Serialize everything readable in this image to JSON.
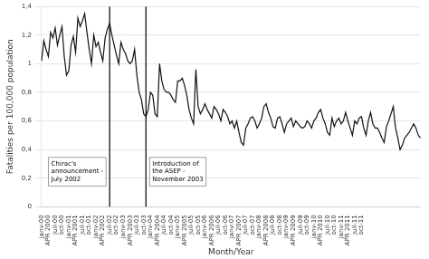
{
  "chart_data": {
    "type": "line",
    "xlabel": "Month/Year",
    "ylabel": "Fatalities per 100,000 population",
    "color": "#111111",
    "grid": "y",
    "ylim": [
      0,
      1.4
    ],
    "yticks": [
      0,
      {
        "value": 0.2,
        "label": "0,2"
      },
      {
        "value": 0.4,
        "label": "0,4"
      },
      {
        "value": 0.6,
        "label": "0,6"
      },
      {
        "value": 0.8,
        "label": "0,8"
      },
      1,
      {
        "value": 1.2,
        "label": "1,2"
      },
      {
        "value": 1.4,
        "label": "1,4"
      }
    ],
    "categories": [
      "janv-00",
      null,
      null,
      "APR 2000",
      null,
      null,
      "juil-00",
      null,
      null,
      "oct-00",
      null,
      null,
      "janv-01",
      null,
      null,
      "APR 2001",
      null,
      null,
      "juil-01",
      null,
      null,
      "oct-01",
      null,
      null,
      "janv-02",
      null,
      null,
      "APR 2002",
      null,
      null,
      "juil-02",
      null,
      null,
      "oct-02",
      null,
      null,
      "janv-03",
      null,
      null,
      "APR 2003",
      null,
      null,
      "juil-03",
      null,
      null,
      "oct-03",
      null,
      null,
      "janv-04",
      null,
      null,
      "APR 2004",
      null,
      null,
      "juil-04",
      null,
      null,
      "oct-04",
      null,
      null,
      "janv-05",
      null,
      null,
      "APR 2005",
      null,
      null,
      "juil-05",
      null,
      null,
      "oct-05",
      null,
      null,
      "janv-06",
      null,
      null,
      "APR 2006",
      null,
      null,
      "juil-06",
      null,
      null,
      "oct-06",
      null,
      null,
      "janv-07",
      null,
      null,
      "APR 2007",
      null,
      null,
      "juil-07",
      null,
      null,
      "oct-07",
      null,
      null,
      "janv-08",
      null,
      null,
      "APR 2008",
      null,
      null,
      "juil-08",
      null,
      null,
      "oct-08",
      null,
      null,
      "janv-09",
      null,
      null,
      "APR 2009",
      null,
      null,
      "juil-09",
      null,
      null,
      "oct-09",
      null,
      null,
      "janv-10",
      null,
      null,
      "APR 2010",
      null,
      null,
      "juil-10",
      null,
      null,
      "oct-10",
      null,
      null,
      "janv-11",
      null,
      null,
      "APR 2011",
      null,
      null,
      "juil-11",
      null,
      null,
      "oct-11",
      null,
      null,
      null,
      null,
      null,
      null,
      null,
      null,
      null,
      null,
      null,
      null,
      null,
      null,
      null,
      null,
      null,
      null,
      null,
      null,
      null,
      null,
      null,
      null,
      null,
      null
    ],
    "values": [
      1.02,
      1.16,
      1.1,
      1.05,
      1.22,
      1.18,
      1.25,
      1.13,
      1.2,
      1.26,
      1.05,
      0.92,
      0.95,
      1.13,
      1.19,
      1.08,
      1.32,
      1.26,
      1.3,
      1.35,
      1.22,
      1.1,
      1.0,
      1.2,
      1.12,
      1.15,
      1.08,
      1.02,
      1.18,
      1.24,
      1.28,
      1.2,
      1.13,
      1.06,
      1.0,
      1.15,
      1.1,
      1.07,
      1.02,
      1.0,
      1.02,
      1.1,
      0.92,
      0.8,
      0.75,
      0.65,
      0.63,
      0.68,
      0.8,
      0.78,
      0.65,
      0.63,
      1.0,
      0.88,
      0.82,
      0.8,
      0.8,
      0.78,
      0.75,
      0.73,
      0.88,
      0.88,
      0.9,
      0.85,
      0.78,
      0.68,
      0.62,
      0.58,
      0.96,
      0.7,
      0.65,
      0.68,
      0.72,
      0.68,
      0.65,
      0.62,
      0.7,
      0.68,
      0.65,
      0.6,
      0.68,
      0.66,
      0.63,
      0.58,
      0.6,
      0.55,
      0.6,
      0.52,
      0.45,
      0.43,
      0.55,
      0.58,
      0.62,
      0.63,
      0.6,
      0.55,
      0.58,
      0.62,
      0.7,
      0.72,
      0.66,
      0.62,
      0.56,
      0.55,
      0.62,
      0.63,
      0.58,
      0.52,
      0.58,
      0.6,
      0.62,
      0.56,
      0.6,
      0.58,
      0.56,
      0.55,
      0.56,
      0.6,
      0.58,
      0.55,
      0.6,
      0.62,
      0.66,
      0.68,
      0.62,
      0.58,
      0.52,
      0.5,
      0.62,
      0.56,
      0.6,
      0.62,
      0.58,
      0.6,
      0.66,
      0.6,
      0.55,
      0.5,
      0.6,
      0.58,
      0.62,
      0.63,
      0.55,
      0.5,
      0.6,
      0.66,
      0.58,
      0.55,
      0.55,
      0.52,
      0.48,
      0.45,
      0.56,
      0.6,
      0.65,
      0.7,
      0.55,
      0.48,
      0.4,
      0.43,
      0.48,
      0.5,
      0.52,
      0.55,
      0.58,
      0.55,
      0.5,
      0.48
    ],
    "annotations": [
      {
        "text": "Chirac's\nannouncement -\nJuly 2002",
        "x": 30
      },
      {
        "text": "Introduction of\nthe ASEP -\nNovember 2003",
        "x": 46
      }
    ]
  }
}
